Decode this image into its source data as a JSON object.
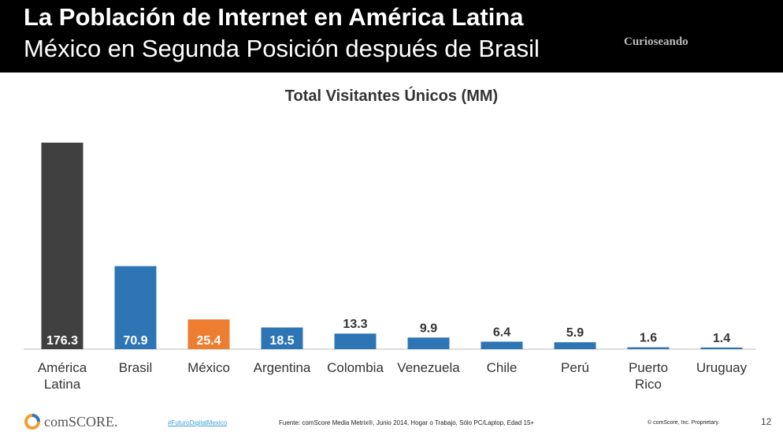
{
  "header": {
    "title": "La Población de Internet en América Latina",
    "subtitle": "México en Segunda Posición después de Brasil",
    "brand": "Curioseando"
  },
  "chart_data": {
    "type": "bar",
    "title": "Total Visitantes Únicos (MM)",
    "categories": [
      "América Latina",
      "Brasil",
      "México",
      "Argentina",
      "Colombia",
      "Venezuela",
      "Chile",
      "Perú",
      "Puerto Rico",
      "Uruguay"
    ],
    "values": [
      176.3,
      70.9,
      25.4,
      18.5,
      13.3,
      9.9,
      6.4,
      5.9,
      1.6,
      1.4
    ],
    "colors": [
      "#404040",
      "#2e75b6",
      "#ed7d31",
      "#2e75b6",
      "#2e75b6",
      "#2e75b6",
      "#2e75b6",
      "#2e75b6",
      "#2e75b6",
      "#2e75b6"
    ]
  },
  "footer": {
    "logo": "comSCORE.",
    "hashtag": "#FuturoDigitalMexico",
    "source": "Fuente: comScore Media Metrix®, Junio 2014, Hogar o Trabajo, Sólo PC/Laptop, Edad 15+",
    "copyright": "© comScore, Inc. Proprietary.",
    "page": "12"
  }
}
